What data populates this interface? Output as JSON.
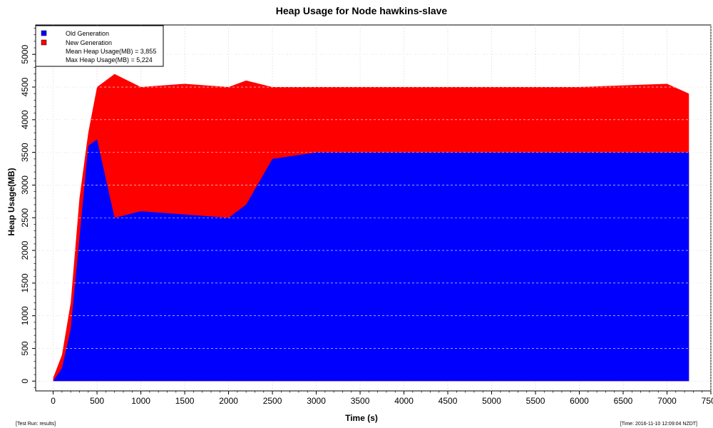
{
  "chart_data": {
    "type": "area",
    "title": "Heap Usage for Node hawkins-slave",
    "xlabel": "Time (s)",
    "ylabel": "Heap Usage(MB)",
    "xlim": [
      -200,
      7500
    ],
    "ylim": [
      -150,
      5450
    ],
    "x_ticks": [
      0,
      500,
      1000,
      1500,
      2000,
      2500,
      3000,
      3500,
      4000,
      4500,
      5000,
      5500,
      6000,
      6500,
      7000,
      7500
    ],
    "y_ticks": [
      0,
      500,
      1000,
      1500,
      2000,
      2500,
      3000,
      3500,
      4000,
      4500,
      5000
    ],
    "grid": true,
    "legend_position": "top-left",
    "series": [
      {
        "name": "Old Generation",
        "color": "#0000ff",
        "x": [
          0,
          100,
          200,
          300,
          400,
          450,
          500,
          700,
          1000,
          1500,
          2000,
          2200,
          2500,
          3000,
          3500,
          4000,
          5000,
          6000,
          7000,
          7250
        ],
        "values": [
          0,
          200,
          800,
          2200,
          3600,
          3650,
          3700,
          2500,
          2600,
          2550,
          2500,
          2700,
          3400,
          3500,
          3500,
          3500,
          3500,
          3500,
          3500,
          3500
        ]
      },
      {
        "name": "New Generation",
        "color": "#ff0000",
        "x": [
          0,
          100,
          200,
          300,
          400,
          500,
          700,
          1000,
          1500,
          2000,
          2200,
          2500,
          3000,
          3500,
          4000,
          5000,
          6000,
          7000,
          7250
        ],
        "values": [
          50,
          400,
          1200,
          2800,
          3800,
          4500,
          4700,
          4500,
          4550,
          4500,
          4600,
          4500,
          4500,
          4500,
          4500,
          4500,
          4500,
          4550,
          4400
        ]
      }
    ],
    "stats": [
      "Mean Heap Usage(MB) = 3,855",
      "Max Heap Usage(MB) = 5,224"
    ]
  },
  "footer": {
    "left": "[Test Run: results]",
    "right": "[Time: 2016-11-10 12:09:04 NZDT]"
  }
}
